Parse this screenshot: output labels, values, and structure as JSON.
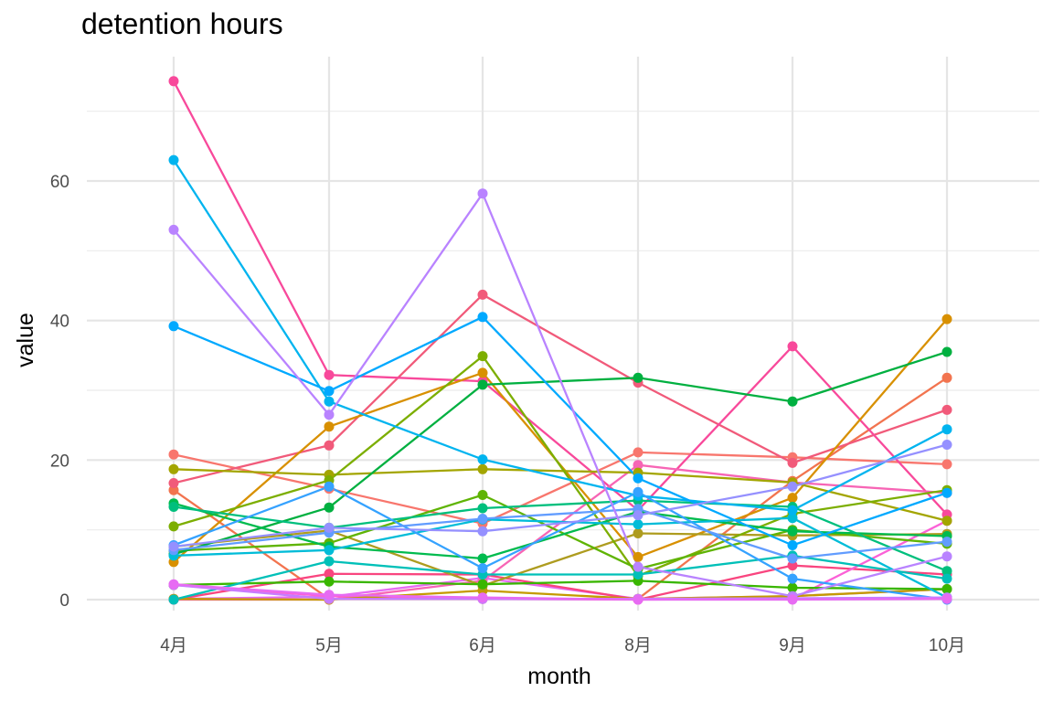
{
  "chart_data": {
    "type": "line",
    "title": "detention hours",
    "xlabel": "month",
    "ylabel": "value",
    "categories": [
      "4月",
      "5月",
      "6月",
      "8月",
      "9月",
      "10月"
    ],
    "ylim": [
      -2,
      76
    ],
    "yticks": [
      0,
      20,
      40,
      60
    ],
    "grid": true,
    "legend": "none",
    "series": [
      {
        "color": "#f8766d",
        "values": [
          20.8,
          15.9,
          10.9,
          21.1,
          20.4,
          19.4
        ]
      },
      {
        "color": "#f2744f",
        "values": [
          15.7,
          0.1,
          0.1,
          0.1,
          17.0,
          31.8
        ]
      },
      {
        "color": "#e76bf3",
        "values": [
          0.1,
          0.4,
          3.1,
          0.1,
          0.5,
          1.5
        ]
      },
      {
        "color": "#f15a7a",
        "values": [
          16.7,
          22.1,
          43.7,
          31.1,
          19.6,
          27.2
        ]
      },
      {
        "color": "#f9457f",
        "values": [
          0.0,
          3.7,
          3.6,
          0.0,
          4.9,
          3.6
        ]
      },
      {
        "color": "#f8499b",
        "values": [
          74.3,
          32.2,
          31.3,
          12.8,
          36.3,
          12.2
        ]
      },
      {
        "color": "#f765b5",
        "values": [
          0.0,
          0.0,
          2.7,
          19.3,
          16.8,
          15.3
        ]
      },
      {
        "color": "#fb61d7",
        "values": [
          2.1,
          0.5,
          0.1,
          0.0,
          0.1,
          11.3
        ]
      },
      {
        "color": "#d89000",
        "values": [
          5.4,
          24.8,
          32.5,
          6.1,
          14.6,
          40.2
        ]
      },
      {
        "color": "#c49a00",
        "values": [
          0.1,
          0.0,
          1.3,
          0.1,
          0.5,
          1.5
        ]
      },
      {
        "color": "#ae9c1f",
        "values": [
          7.6,
          9.9,
          2.0,
          9.5,
          9.2,
          9.4
        ]
      },
      {
        "color": "#a3a500",
        "values": [
          18.7,
          17.9,
          18.7,
          18.2,
          16.8,
          11.3
        ]
      },
      {
        "color": "#7cae00",
        "values": [
          10.5,
          17.1,
          34.9,
          3.4,
          12.3,
          15.7
        ]
      },
      {
        "color": "#5fb404",
        "values": [
          7.0,
          8.1,
          15.0,
          4.4,
          10.0,
          8.0
        ]
      },
      {
        "color": "#39b600",
        "values": [
          2.1,
          2.6,
          2.2,
          2.7,
          1.7,
          1.5
        ]
      },
      {
        "color": "#00b040",
        "values": [
          6.5,
          13.2,
          30.8,
          31.8,
          28.4,
          35.5
        ]
      },
      {
        "color": "#00bb4e",
        "values": [
          13.8,
          7.6,
          5.9,
          12.6,
          9.8,
          9.1
        ]
      },
      {
        "color": "#00bf7d",
        "values": [
          13.3,
          10.3,
          13.1,
          14.2,
          13.3,
          4.1
        ]
      },
      {
        "color": "#00c0b8",
        "values": [
          0.0,
          5.5,
          3.6,
          3.6,
          6.3,
          3.0
        ]
      },
      {
        "color": "#00bcd8",
        "values": [
          6.3,
          7.1,
          11.5,
          10.8,
          11.7,
          0.3
        ]
      },
      {
        "color": "#00b4ef",
        "values": [
          63.0,
          28.4,
          20.1,
          14.9,
          12.8,
          24.4
        ]
      },
      {
        "color": "#00a9ff",
        "values": [
          39.2,
          29.9,
          40.5,
          17.4,
          7.8,
          15.3
        ]
      },
      {
        "color": "#35a2ff",
        "values": [
          7.8,
          16.2,
          4.5,
          15.4,
          3.0,
          0.0
        ]
      },
      {
        "color": "#619cff",
        "values": [
          7.1,
          9.6,
          11.6,
          13.0,
          5.9,
          8.3
        ]
      },
      {
        "color": "#9590ff",
        "values": [
          7.6,
          10.3,
          9.8,
          12.1,
          16.2,
          22.2
        ]
      },
      {
        "color": "#b983ff",
        "values": [
          53.0,
          26.5,
          58.2,
          4.7,
          0.5,
          6.2
        ]
      },
      {
        "color": "#c77cff",
        "values": [
          2.1,
          0.1,
          0.1,
          0.1,
          0.2,
          0.3
        ]
      },
      {
        "color": "#e76bf3",
        "values": [
          2.2,
          0.7,
          0.3,
          0.0,
          0.0,
          0.1
        ]
      }
    ]
  }
}
